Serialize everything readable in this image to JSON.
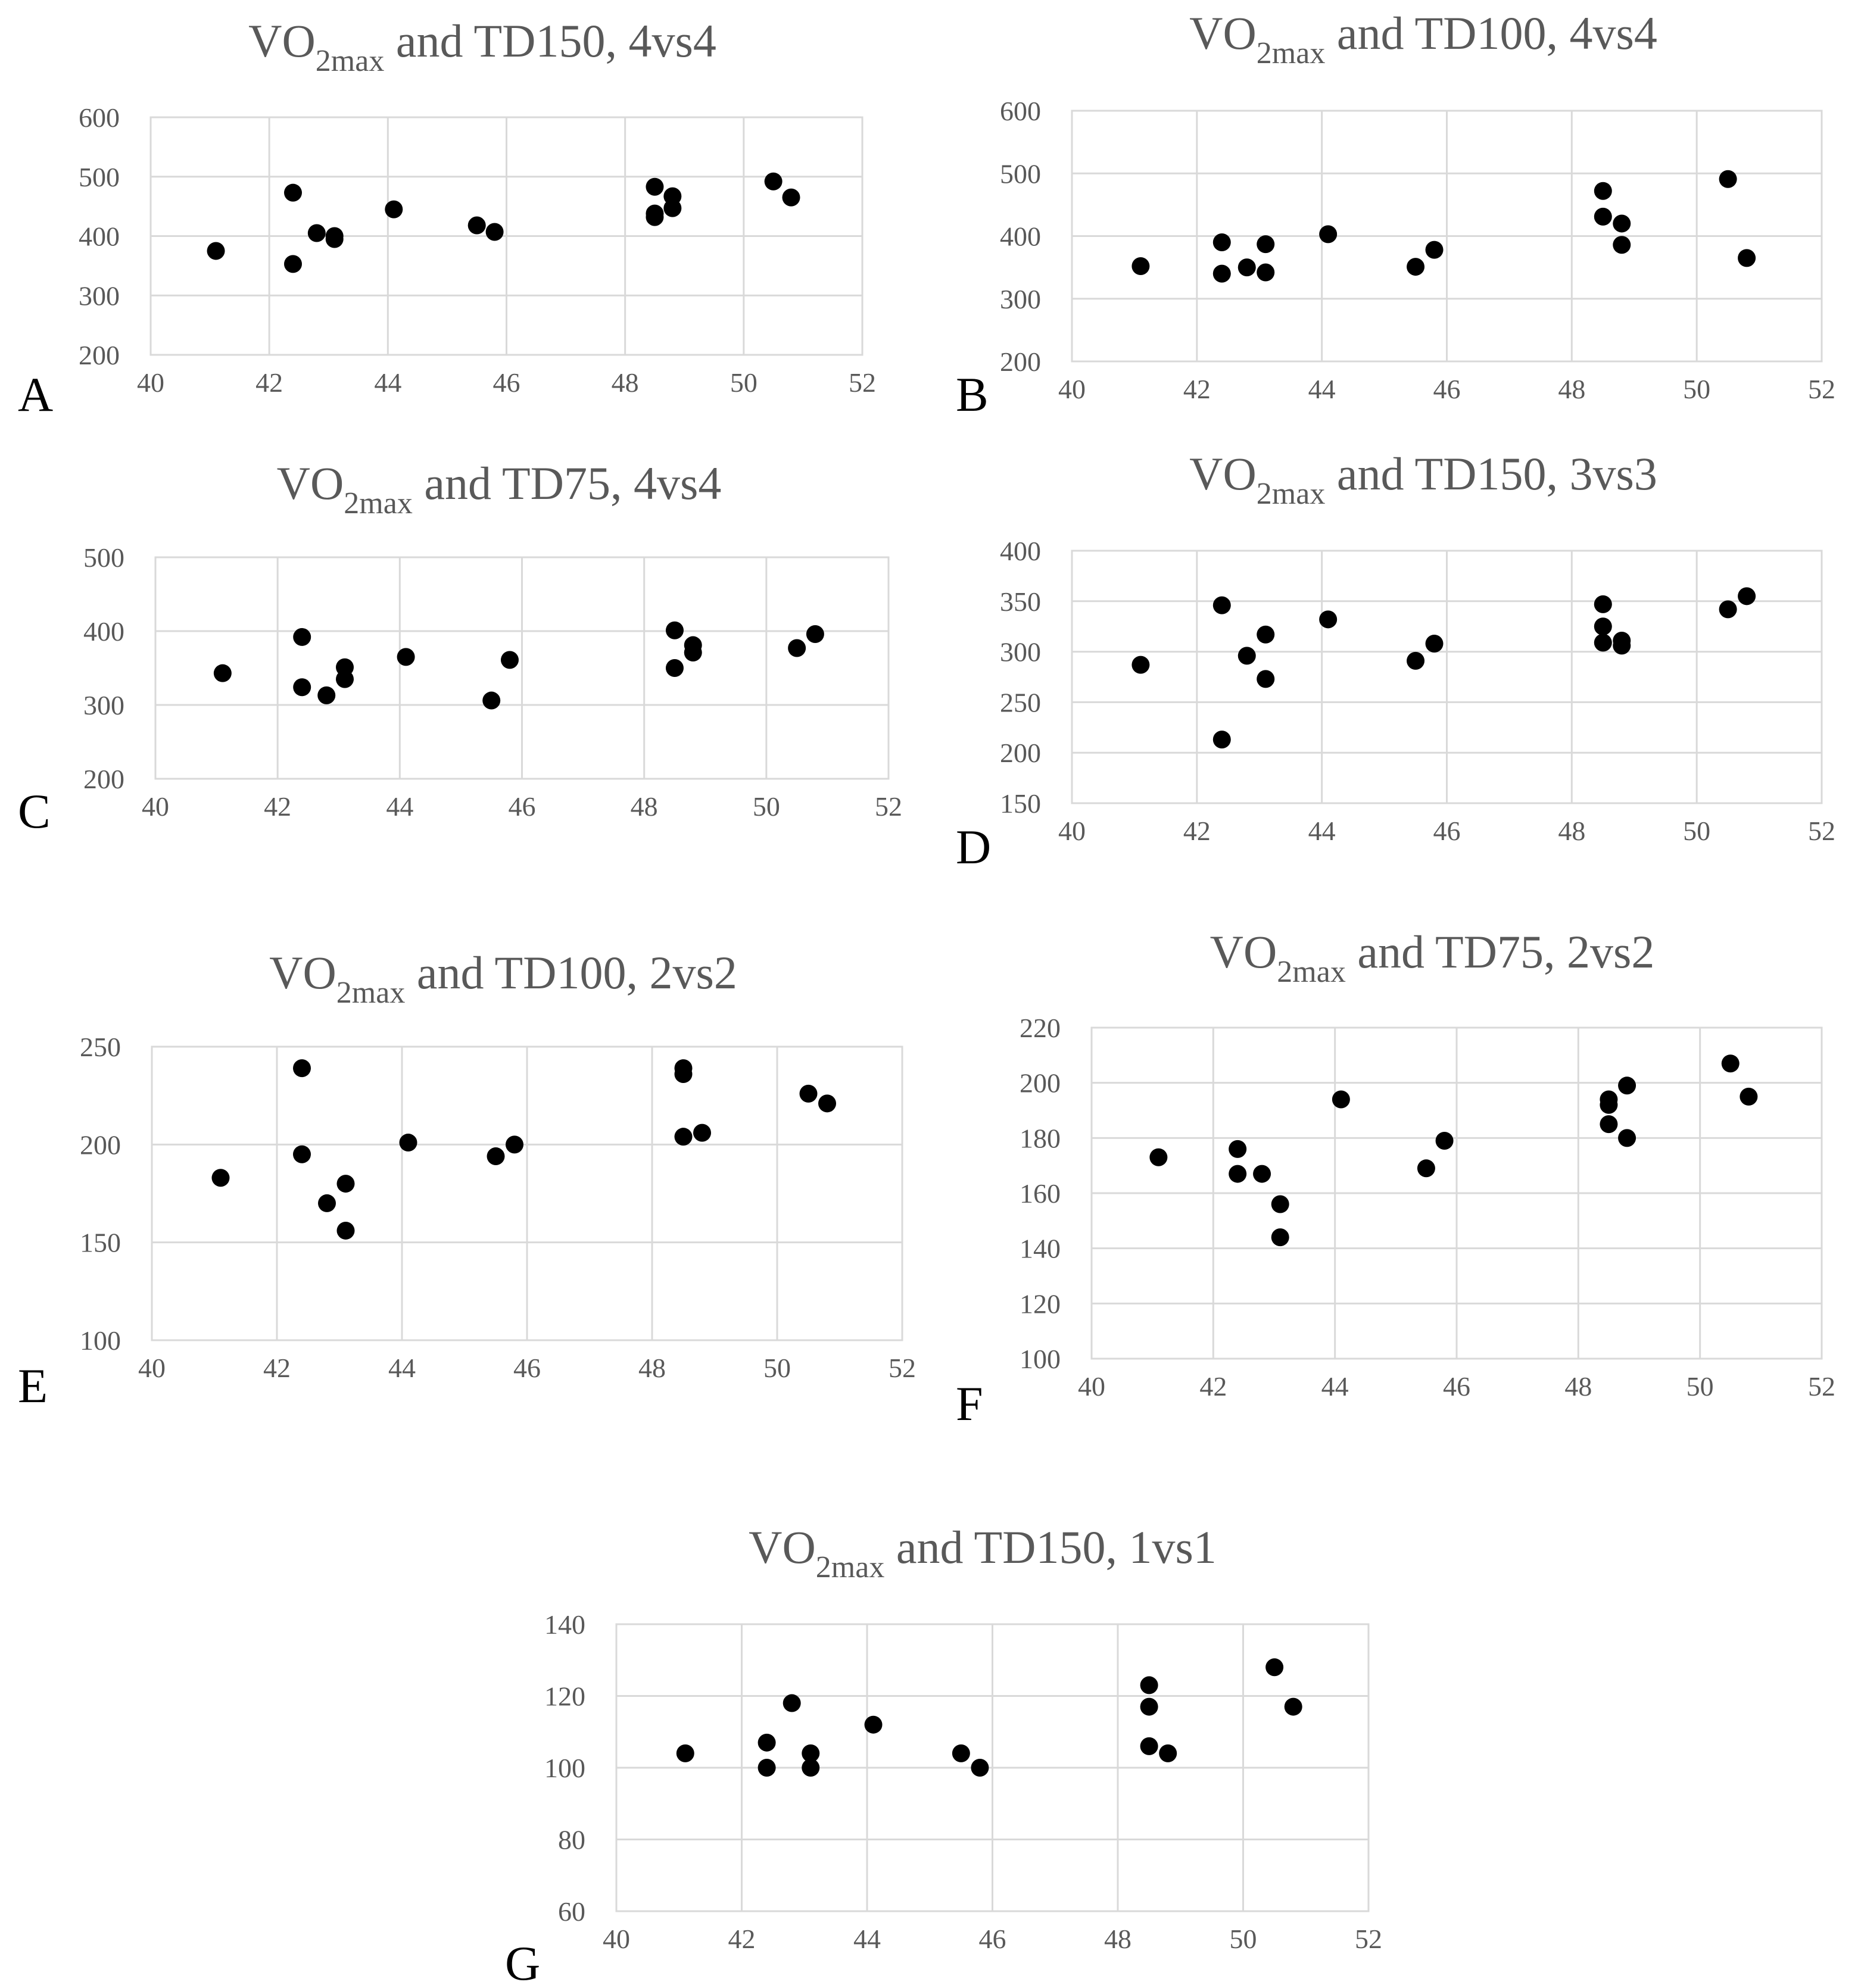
{
  "figure": {
    "background": "#ffffff",
    "text_color": "#595959",
    "grid_color": "#d9d9d9",
    "marker_color": "#000000"
  },
  "chart_data": [
    {
      "panel": "A",
      "type": "scatter",
      "title": {
        "main": "VO",
        "sub": "2max",
        "rest": " and TD150, 4vs4"
      },
      "xlim": [
        40,
        52
      ],
      "xticks": [
        40,
        42,
        44,
        46,
        48,
        50,
        52
      ],
      "ylim": [
        200,
        600
      ],
      "yticks": [
        200,
        300,
        400,
        500,
        600
      ],
      "points": [
        [
          41.1,
          375
        ],
        [
          42.4,
          473
        ],
        [
          42.4,
          353
        ],
        [
          42.8,
          405
        ],
        [
          43.1,
          400
        ],
        [
          43.1,
          395
        ],
        [
          44.1,
          445
        ],
        [
          45.5,
          418
        ],
        [
          45.8,
          407
        ],
        [
          48.5,
          483
        ],
        [
          48.5,
          438
        ],
        [
          48.5,
          432
        ],
        [
          48.8,
          467
        ],
        [
          48.8,
          447
        ],
        [
          50.5,
          492
        ],
        [
          50.8,
          465
        ]
      ]
    },
    {
      "panel": "B",
      "type": "scatter",
      "title": {
        "main": "VO",
        "sub": "2max",
        "rest": " and TD100, 4vs4"
      },
      "xlim": [
        40,
        52
      ],
      "xticks": [
        40,
        42,
        44,
        46,
        48,
        50,
        52
      ],
      "ylim": [
        200,
        600
      ],
      "yticks": [
        200,
        300,
        400,
        500,
        600
      ],
      "points": [
        [
          41.1,
          352
        ],
        [
          42.4,
          390
        ],
        [
          42.4,
          340
        ],
        [
          42.8,
          350
        ],
        [
          43.1,
          387
        ],
        [
          43.1,
          342
        ],
        [
          44.1,
          403
        ],
        [
          45.5,
          351
        ],
        [
          45.8,
          378
        ],
        [
          48.5,
          472
        ],
        [
          48.5,
          431
        ],
        [
          48.8,
          420
        ],
        [
          48.8,
          386
        ],
        [
          50.5,
          491
        ],
        [
          50.8,
          365
        ]
      ]
    },
    {
      "panel": "C",
      "type": "scatter",
      "title": {
        "main": "VO",
        "sub": "2max",
        "rest": " and TD75, 4vs4"
      },
      "xlim": [
        40,
        52
      ],
      "xticks": [
        40,
        42,
        44,
        46,
        48,
        50,
        52
      ],
      "ylim": [
        200,
        500
      ],
      "yticks": [
        200,
        300,
        400,
        500
      ],
      "points": [
        [
          41.1,
          343
        ],
        [
          42.4,
          392
        ],
        [
          42.4,
          324
        ],
        [
          42.8,
          313
        ],
        [
          43.1,
          351
        ],
        [
          43.1,
          335
        ],
        [
          44.1,
          365
        ],
        [
          45.5,
          306
        ],
        [
          45.8,
          361
        ],
        [
          48.5,
          401
        ],
        [
          48.5,
          350
        ],
        [
          48.8,
          381
        ],
        [
          48.8,
          371
        ],
        [
          50.5,
          377
        ],
        [
          50.8,
          396
        ]
      ]
    },
    {
      "panel": "D",
      "type": "scatter",
      "title": {
        "main": "VO",
        "sub": "2max",
        "rest": " and TD150, 3vs3"
      },
      "xlim": [
        40,
        52
      ],
      "xticks": [
        40,
        42,
        44,
        46,
        48,
        50,
        52
      ],
      "ylim": [
        150,
        400
      ],
      "yticks": [
        150,
        200,
        250,
        300,
        350,
        400
      ],
      "points": [
        [
          41.1,
          287
        ],
        [
          42.4,
          346
        ],
        [
          42.4,
          213
        ],
        [
          42.8,
          296
        ],
        [
          43.1,
          317
        ],
        [
          43.1,
          273
        ],
        [
          44.1,
          332
        ],
        [
          45.5,
          291
        ],
        [
          45.8,
          308
        ],
        [
          48.5,
          347
        ],
        [
          48.5,
          325
        ],
        [
          48.5,
          309
        ],
        [
          48.8,
          311
        ],
        [
          48.8,
          306
        ],
        [
          50.5,
          342
        ],
        [
          50.8,
          355
        ]
      ]
    },
    {
      "panel": "E",
      "type": "scatter",
      "title": {
        "main": "VO",
        "sub": "2max",
        "rest": " and TD100, 2vs2"
      },
      "xlim": [
        40,
        52
      ],
      "xticks": [
        40,
        42,
        44,
        46,
        48,
        50,
        52
      ],
      "ylim": [
        100,
        250
      ],
      "yticks": [
        100,
        150,
        200,
        250
      ],
      "points": [
        [
          41.1,
          183
        ],
        [
          42.4,
          239
        ],
        [
          42.4,
          195
        ],
        [
          42.8,
          170
        ],
        [
          43.1,
          180
        ],
        [
          43.1,
          156
        ],
        [
          44.1,
          201
        ],
        [
          45.5,
          194
        ],
        [
          45.8,
          200
        ],
        [
          48.5,
          239
        ],
        [
          48.5,
          236
        ],
        [
          48.5,
          204
        ],
        [
          48.8,
          206
        ],
        [
          50.5,
          226
        ],
        [
          50.8,
          221
        ]
      ]
    },
    {
      "panel": "F",
      "type": "scatter",
      "title": {
        "main": "VO",
        "sub": "2max",
        "rest": " and TD75, 2vs2"
      },
      "xlim": [
        40,
        52
      ],
      "xticks": [
        40,
        42,
        44,
        46,
        48,
        50,
        52
      ],
      "ylim": [
        100,
        220
      ],
      "yticks": [
        100,
        120,
        140,
        160,
        180,
        200,
        220
      ],
      "points": [
        [
          41.1,
          173
        ],
        [
          42.4,
          176
        ],
        [
          42.4,
          167
        ],
        [
          42.8,
          167
        ],
        [
          43.1,
          156
        ],
        [
          43.1,
          144
        ],
        [
          44.1,
          194
        ],
        [
          45.5,
          169
        ],
        [
          45.8,
          179
        ],
        [
          48.5,
          194
        ],
        [
          48.5,
          192
        ],
        [
          48.5,
          185
        ],
        [
          48.8,
          199
        ],
        [
          48.8,
          180
        ],
        [
          50.5,
          207
        ],
        [
          50.8,
          195
        ]
      ]
    },
    {
      "panel": "G",
      "type": "scatter",
      "title": {
        "main": "VO",
        "sub": "2max",
        "rest": " and TD150, 1vs1"
      },
      "xlim": [
        40,
        52
      ],
      "xticks": [
        40,
        42,
        44,
        46,
        48,
        50,
        52
      ],
      "ylim": [
        60,
        140
      ],
      "yticks": [
        60,
        80,
        100,
        120,
        140
      ],
      "points": [
        [
          41.1,
          104
        ],
        [
          42.4,
          107
        ],
        [
          42.4,
          100
        ],
        [
          42.8,
          118
        ],
        [
          43.1,
          104
        ],
        [
          43.1,
          100
        ],
        [
          44.1,
          112
        ],
        [
          45.5,
          104
        ],
        [
          45.8,
          100
        ],
        [
          48.5,
          123
        ],
        [
          48.5,
          117
        ],
        [
          48.5,
          106
        ],
        [
          48.8,
          104
        ],
        [
          50.5,
          128
        ],
        [
          50.8,
          117
        ]
      ]
    }
  ]
}
